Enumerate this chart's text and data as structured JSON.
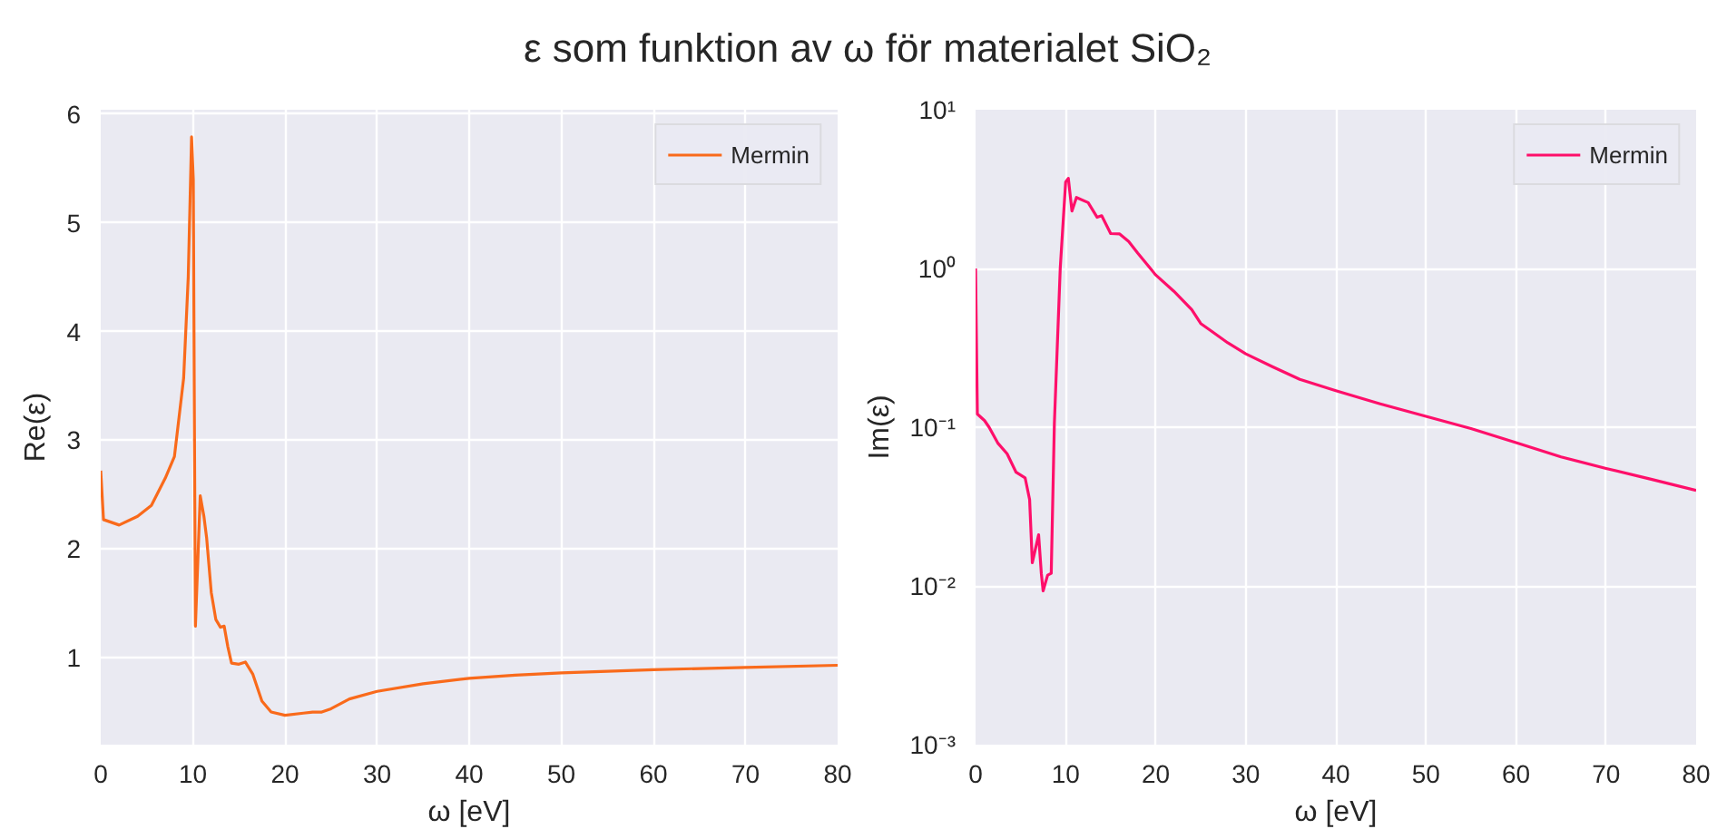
{
  "chart_data": [
    {
      "type": "line",
      "title": "ε som funktion av ω för materialet SiO₂",
      "xlabel": "ω [eV]",
      "ylabel": "Re(ε)",
      "xlim": [
        0,
        80
      ],
      "ylim": [
        0.2,
        6.04
      ],
      "xticks": [
        0,
        10,
        20,
        30,
        40,
        50,
        60,
        70,
        80
      ],
      "yticks": [
        1,
        2,
        3,
        4,
        5,
        6
      ],
      "grid": true,
      "legend": "top right",
      "series": [
        {
          "name": "Mermin",
          "color": "#f96a1b",
          "x": [
            0,
            0.3,
            2,
            4,
            5.5,
            7,
            8,
            9,
            9.5,
            9.86,
            10.05,
            10.15,
            10.28,
            10.8,
            11.2,
            11.5,
            12,
            12.5,
            13,
            13.4,
            13.8,
            14.2,
            15,
            15.7,
            16.5,
            17.5,
            18.5,
            20,
            22,
            23,
            24,
            25,
            27,
            30,
            35,
            40,
            45,
            50,
            60,
            70,
            80
          ],
          "values": [
            2.72,
            2.27,
            2.22,
            2.3,
            2.4,
            2.65,
            2.85,
            3.57,
            4.5,
            5.79,
            5.4,
            3.5,
            1.29,
            2.49,
            2.3,
            2.1,
            1.6,
            1.35,
            1.28,
            1.29,
            1.1,
            0.95,
            0.94,
            0.96,
            0.85,
            0.6,
            0.5,
            0.47,
            0.49,
            0.5,
            0.5,
            0.53,
            0.62,
            0.69,
            0.76,
            0.81,
            0.84,
            0.86,
            0.89,
            0.91,
            0.93
          ]
        }
      ]
    },
    {
      "type": "line",
      "xlabel": "ω [eV]",
      "ylabel": "Im(ε)",
      "log": "y",
      "xlim": [
        0,
        80
      ],
      "ylim": [
        0.001,
        10
      ],
      "xticks": [
        0,
        10,
        20,
        30,
        40,
        50,
        60,
        70,
        80
      ],
      "yticks": [
        {
          "value": 0.001,
          "label": "10⁻³"
        },
        {
          "value": 0.01,
          "label": "10⁻²"
        },
        {
          "value": 0.1,
          "label": "10⁻¹"
        },
        {
          "value": 1,
          "label": "10⁰"
        },
        {
          "value": 10,
          "label": "10¹"
        }
      ],
      "grid": true,
      "legend": "top right",
      "series": [
        {
          "name": "Mermin",
          "color": "#fe0f6a",
          "x": [
            0,
            0.2,
            1,
            1.5,
            2.5,
            3.5,
            4.5,
            5.5,
            6,
            6.3,
            7.0,
            7.3,
            7.5,
            8.0,
            8.4,
            8.75,
            9.4,
            10.0,
            10.3,
            10.7,
            11.2,
            12.5,
            13.5,
            14,
            15,
            16,
            17,
            18,
            20,
            22,
            24,
            25,
            26,
            28,
            30,
            33,
            36,
            40,
            45,
            50,
            55,
            60,
            65,
            70,
            75,
            80
          ],
          "values": [
            1.0,
            0.121,
            0.11,
            0.1,
            0.079,
            0.068,
            0.052,
            0.048,
            0.035,
            0.014,
            0.021,
            0.012,
            0.0093,
            0.0117,
            0.012,
            0.106,
            1.0,
            3.5,
            3.7,
            2.3,
            2.8,
            2.6,
            2.1,
            2.15,
            1.66,
            1.65,
            1.48,
            1.25,
            0.91,
            0.72,
            0.55,
            0.45,
            0.41,
            0.34,
            0.29,
            0.24,
            0.2,
            0.17,
            0.14,
            0.117,
            0.098,
            0.08,
            0.065,
            0.055,
            0.047,
            0.04
          ]
        }
      ]
    }
  ]
}
